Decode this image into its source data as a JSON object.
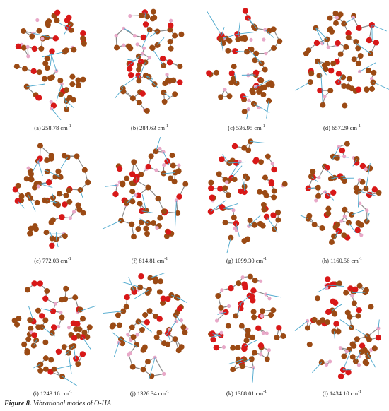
{
  "figure": {
    "label": "Figure 8.",
    "title": "Vibrational modes of O-HA"
  },
  "colors": {
    "carbon": "#9b4a14",
    "oxygen": "#d81818",
    "hydrogen": "#e8a8c8",
    "bond": "#8a8a8a",
    "vector": "#49a6cc"
  },
  "panels": [
    {
      "id": "a",
      "prefix": "(a) 258.78 cm",
      "suffix": "-1"
    },
    {
      "id": "b",
      "prefix": "(b) 284.63 cm",
      "suffix": "-1"
    },
    {
      "id": "c",
      "prefix": "(c) 536.95 cm",
      "suffix": "-1"
    },
    {
      "id": "d",
      "prefix": "(d) 657.29 cm",
      "suffix": "-1"
    },
    {
      "id": "e",
      "prefix": "(e) 772.03 cm",
      "suffix": "-1"
    },
    {
      "id": "f",
      "prefix": "(f) 814.81 cm",
      "suffix": "-1"
    },
    {
      "id": "g",
      "prefix": "(g) 1099.30 cm",
      "suffix": "-1"
    },
    {
      "id": "h",
      "prefix": "(h) 1160.56 cm",
      "suffix": "-1"
    },
    {
      "id": "i",
      "prefix": "(i) 1243.16 cm",
      "suffix": "-1"
    },
    {
      "id": "j",
      "prefix": "(j) 1326.34 cm",
      "suffix": "-1"
    },
    {
      "id": "k",
      "prefix": "(k) 1388.01 cm",
      "suffix": "-1"
    },
    {
      "id": "l",
      "prefix": "(l) 1434.10 cm",
      "suffix": "-1"
    }
  ]
}
